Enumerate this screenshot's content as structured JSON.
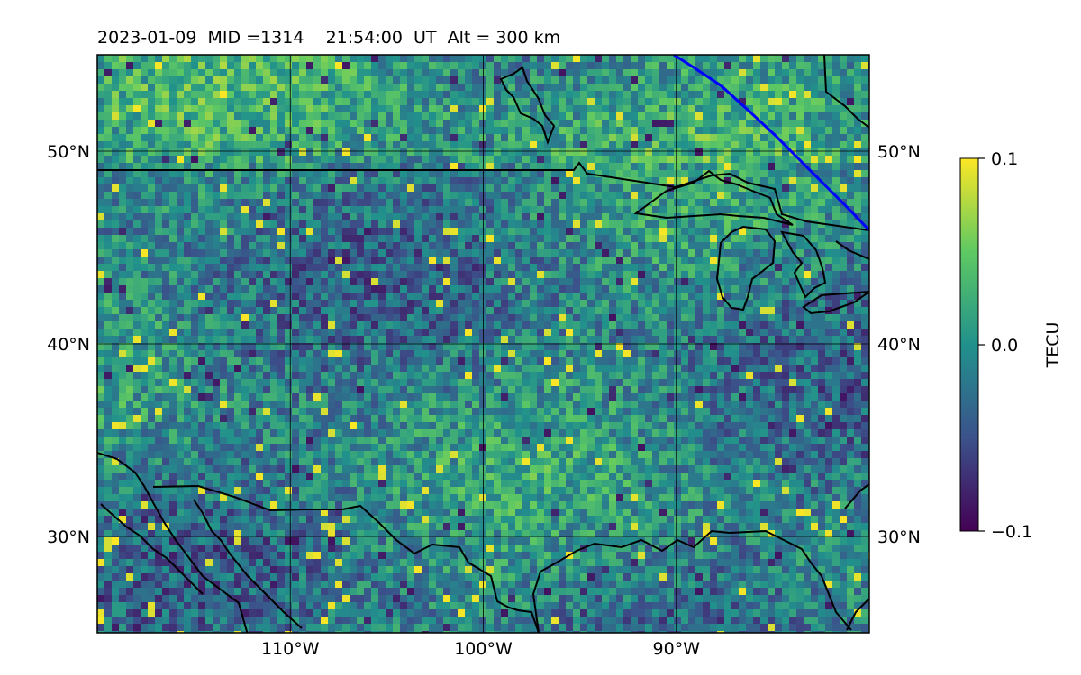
{
  "chart_data": {
    "type": "heatmap",
    "title": "2023-01-09  MID =1314    21:54:00  UT  Alt = 300 km",
    "colorbar": {
      "label": "TECU",
      "min": -0.1,
      "max": 0.1,
      "ticks": [
        {
          "value": 0.1,
          "label": "0.1"
        },
        {
          "value": 0.0,
          "label": "0.0"
        },
        {
          "value": -0.1,
          "label": "−0.1"
        }
      ],
      "colormap": [
        "#440154",
        "#3b528b",
        "#21918c",
        "#5ec962",
        "#fde725"
      ]
    },
    "lon_range": [
      -120,
      -80
    ],
    "lat_range": [
      25,
      55
    ],
    "x_ticks": [
      {
        "value": -110,
        "label": "110°W"
      },
      {
        "value": -100,
        "label": "100°W"
      },
      {
        "value": -90,
        "label": "90°W"
      }
    ],
    "y_ticks": [
      {
        "value": 30,
        "label": "30°N"
      },
      {
        "value": 40,
        "label": "40°N"
      },
      {
        "value": 50,
        "label": "50°N"
      }
    ],
    "grid": true,
    "overlays": {
      "coastline_color": "#000000",
      "terminator_color": "#0000ff"
    }
  }
}
